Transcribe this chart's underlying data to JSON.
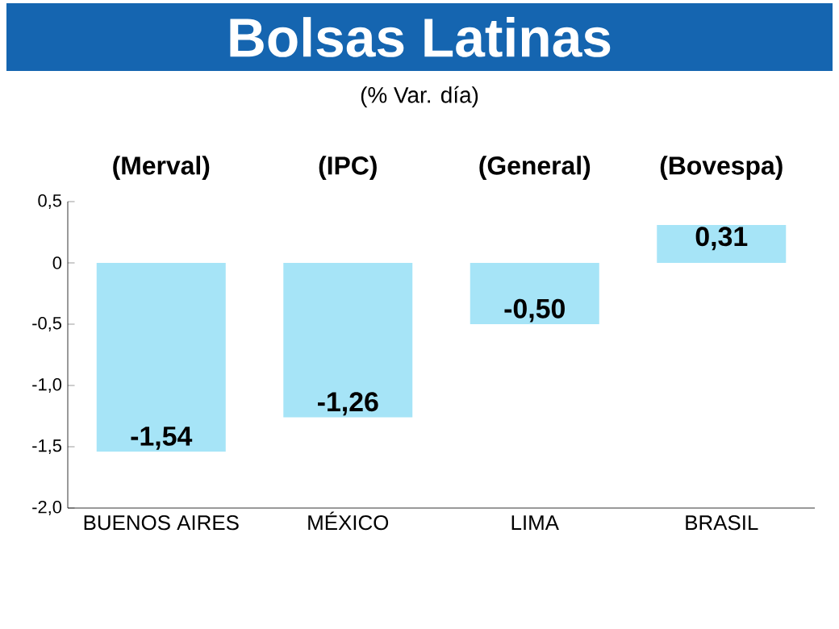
{
  "chart_data": {
    "type": "bar",
    "title": "Bolsas Latinas",
    "subtitle": "(% Var. día)",
    "annotations": [
      "(Merval)",
      "(IPC)",
      "(General)",
      "(Bovespa)"
    ],
    "categories": [
      "BUENOS AIRES",
      "MÉXICO",
      "LIMA",
      "BRASIL"
    ],
    "values": [
      -1.54,
      -1.26,
      -0.5,
      0.31
    ],
    "value_labels": [
      "-1,54",
      "-1,26",
      "-0,50",
      "0,31"
    ],
    "color": "#a6e4f7",
    "ylim": [
      -2,
      0.5
    ],
    "yticks": [
      {
        "value": 0.5,
        "label": "0,5"
      },
      {
        "value": 0,
        "label": "0"
      },
      {
        "value": -0.5,
        "label": "-0,5"
      },
      {
        "value": -1,
        "label": "-1,0"
      },
      {
        "value": -1.5,
        "label": "-1,5"
      },
      {
        "value": -2,
        "label": "-2,0"
      }
    ],
    "grid": false
  }
}
